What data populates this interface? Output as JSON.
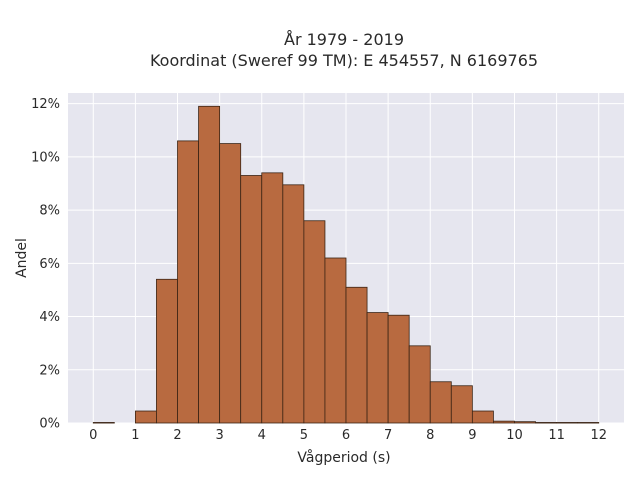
{
  "chart_data": {
    "type": "bar",
    "title_lines": [
      "År 1979 - 2019",
      "Koordinat (Sweref 99 TM): E 454557, N 6169765"
    ],
    "xlabel": "Vågperiod (s)",
    "ylabel": "Andel",
    "xlim": [
      -0.6,
      12.6
    ],
    "ylim": [
      0,
      12.4
    ],
    "xticks": [
      0,
      1,
      2,
      3,
      4,
      5,
      6,
      7,
      8,
      9,
      10,
      11,
      12
    ],
    "yticks": [
      0,
      2,
      4,
      6,
      8,
      10,
      12
    ],
    "ytick_format": "percent",
    "grid": true,
    "bin_width": 0.5,
    "bins": [
      {
        "x0": 0.0,
        "value": 0.02
      },
      {
        "x0": 1.0,
        "value": 0.45
      },
      {
        "x0": 1.5,
        "value": 5.4
      },
      {
        "x0": 2.0,
        "value": 10.6
      },
      {
        "x0": 2.5,
        "value": 11.9
      },
      {
        "x0": 3.0,
        "value": 10.5
      },
      {
        "x0": 3.5,
        "value": 9.3
      },
      {
        "x0": 4.0,
        "value": 9.4
      },
      {
        "x0": 4.5,
        "value": 8.95
      },
      {
        "x0": 5.0,
        "value": 7.6
      },
      {
        "x0": 5.5,
        "value": 6.2
      },
      {
        "x0": 6.0,
        "value": 5.1
      },
      {
        "x0": 6.5,
        "value": 4.15
      },
      {
        "x0": 7.0,
        "value": 4.05
      },
      {
        "x0": 7.5,
        "value": 2.9
      },
      {
        "x0": 8.0,
        "value": 1.55
      },
      {
        "x0": 8.5,
        "value": 1.4
      },
      {
        "x0": 9.0,
        "value": 0.45
      },
      {
        "x0": 9.5,
        "value": 0.07
      },
      {
        "x0": 10.0,
        "value": 0.05
      },
      {
        "x0": 10.5,
        "value": 0.02
      },
      {
        "x0": 11.0,
        "value": 0.02
      },
      {
        "x0": 11.5,
        "value": 0.02
      }
    ],
    "colors": {
      "bar_fill": "#b86a40",
      "bar_edge": "#3b2414",
      "plot_bg": "#e6e6ef",
      "grid": "#ffffff"
    }
  }
}
